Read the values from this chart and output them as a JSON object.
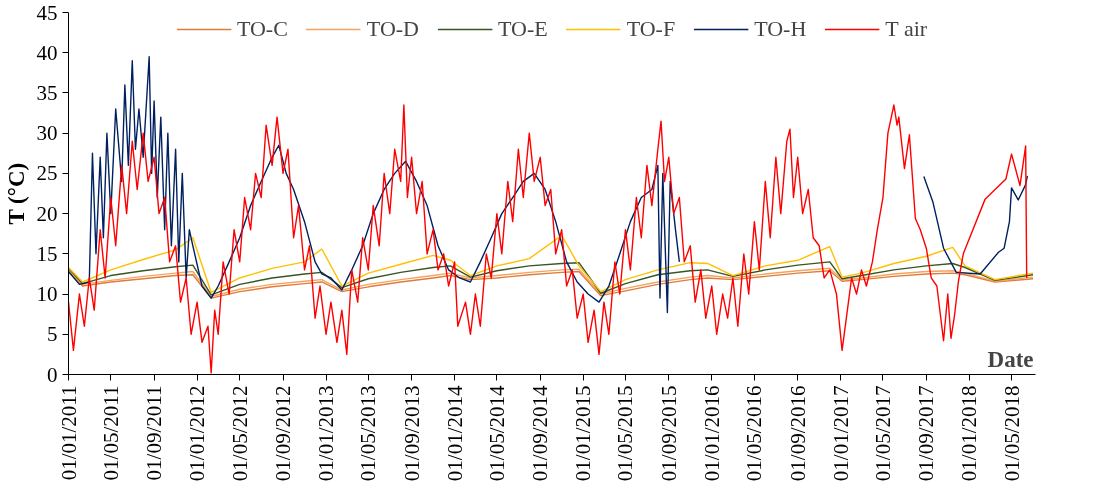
{
  "chart_data": {
    "type": "line",
    "xlabel": "Date",
    "ylabel": "T (°C)",
    "ylim": [
      0,
      45
    ],
    "yticks": [
      0,
      5,
      10,
      15,
      20,
      25,
      30,
      35,
      40,
      45
    ],
    "xlim": [
      "2011-01-01",
      "2018-07-08"
    ],
    "xticks": [
      {
        "value": "2011-01-01",
        "label": "01/01/2011"
      },
      {
        "value": "2011-05-01",
        "label": "01/05/2011"
      },
      {
        "value": "2011-09-01",
        "label": "01/09/2011"
      },
      {
        "value": "2012-01-01",
        "label": "01/01/2012"
      },
      {
        "value": "2012-05-01",
        "label": "01/05/2012"
      },
      {
        "value": "2012-09-01",
        "label": "01/09/2012"
      },
      {
        "value": "2013-01-01",
        "label": "01/01/2013"
      },
      {
        "value": "2013-05-01",
        "label": "01/05/2013"
      },
      {
        "value": "2013-09-01",
        "label": "01/09/2013"
      },
      {
        "value": "2014-01-01",
        "label": "01/01/2014"
      },
      {
        "value": "2014-05-01",
        "label": "01/05/2014"
      },
      {
        "value": "2014-09-01",
        "label": "01/09/2014"
      },
      {
        "value": "2015-01-01",
        "label": "01/01/2015"
      },
      {
        "value": "2015-05-01",
        "label": "01/05/2015"
      },
      {
        "value": "2015-09-01",
        "label": "01/09/2015"
      },
      {
        "value": "2016-01-01",
        "label": "01/01/2016"
      },
      {
        "value": "2016-05-01",
        "label": "01/05/2016"
      },
      {
        "value": "2016-09-01",
        "label": "01/09/2016"
      },
      {
        "value": "2017-01-01",
        "label": "01/01/2017"
      },
      {
        "value": "2017-05-01",
        "label": "01/05/2017"
      },
      {
        "value": "2017-09-01",
        "label": "01/09/2017"
      },
      {
        "value": "2018-01-01",
        "label": "01/01/2018"
      },
      {
        "value": "2018-05-01",
        "label": "01/05/2018"
      }
    ],
    "grid": false,
    "legend": "top",
    "marker": "none",
    "line_style": "solid",
    "x": [
      "2011-01-01",
      "2011-02-10",
      "2011-05-01",
      "2011-08-01",
      "2011-11-01",
      "2011-12-20",
      "2012-02-10",
      "2012-05-01",
      "2012-08-01",
      "2012-11-01",
      "2012-12-20",
      "2013-02-15",
      "2013-05-01",
      "2013-08-01",
      "2013-11-01",
      "2013-12-20",
      "2014-02-15",
      "2014-05-01",
      "2014-08-01",
      "2014-11-01",
      "2014-12-20",
      "2015-02-20",
      "2015-05-01",
      "2015-08-01",
      "2015-11-01",
      "2015-12-20",
      "2016-03-01",
      "2016-06-01",
      "2016-09-01",
      "2016-12-01",
      "2017-01-05",
      "2017-03-01",
      "2017-06-01",
      "2017-09-01",
      "2017-11-15",
      "2017-12-20",
      "2018-03-15",
      "2018-07-01"
    ],
    "series": [
      {
        "name": "TO-C",
        "color": "#e07b39",
        "values": [
          12.8,
          11.0,
          11.5,
          11.9,
          12.3,
          12.4,
          9.5,
          10.3,
          10.9,
          11.3,
          11.5,
          10.3,
          10.9,
          11.5,
          12.0,
          12.3,
          11.8,
          12.0,
          12.4,
          12.7,
          12.8,
          9.8,
          10.4,
          11.2,
          11.8,
          12.0,
          11.8,
          12.2,
          12.6,
          12.9,
          11.6,
          11.8,
          12.2,
          12.5,
          12.6,
          12.4,
          11.5,
          11.9
        ]
      },
      {
        "name": "TO-D",
        "color": "#f4a460",
        "values": [
          13.0,
          11.2,
          11.7,
          12.2,
          12.6,
          12.8,
          9.7,
          10.6,
          11.2,
          11.6,
          11.8,
          10.5,
          11.2,
          11.8,
          12.3,
          12.6,
          12.0,
          12.3,
          12.7,
          13.0,
          13.1,
          10.0,
          10.7,
          11.5,
          12.1,
          12.3,
          12.0,
          12.5,
          12.9,
          13.2,
          11.8,
          12.0,
          12.5,
          12.8,
          12.9,
          12.6,
          11.6,
          12.1
        ]
      },
      {
        "name": "TO-E",
        "color": "#375623",
        "values": [
          13.2,
          11.3,
          12.3,
          12.9,
          13.4,
          13.6,
          9.9,
          11.2,
          12.0,
          12.5,
          12.7,
          10.8,
          11.9,
          12.7,
          13.3,
          13.5,
          12.1,
          12.9,
          13.5,
          13.8,
          13.9,
          10.1,
          11.3,
          12.4,
          12.9,
          13.0,
          12.2,
          13.0,
          13.6,
          14.0,
          11.9,
          12.3,
          13.0,
          13.5,
          13.8,
          13.3,
          11.7,
          12.4
        ]
      },
      {
        "name": "TO-F",
        "color": "#ffc000",
        "values": [
          13.3,
          11.5,
          13.0,
          14.3,
          15.5,
          17.0,
          10.2,
          12.0,
          13.2,
          14.0,
          15.6,
          11.0,
          12.6,
          13.7,
          14.8,
          14.2,
          12.3,
          13.5,
          14.4,
          17.3,
          13.5,
          10.3,
          11.8,
          13.0,
          13.9,
          13.8,
          12.3,
          13.5,
          14.2,
          15.9,
          12.1,
          12.6,
          13.8,
          14.7,
          15.8,
          13.5,
          11.8,
          12.6
        ]
      },
      {
        "name": "TO-H",
        "color": "#002060",
        "x": [
          "2011-01-01",
          "2011-02-01",
          "2011-03-01",
          "2011-03-10",
          "2011-03-20",
          "2011-04-01",
          "2011-04-10",
          "2011-04-20",
          "2011-05-01",
          "2011-05-15",
          "2011-06-01",
          "2011-06-10",
          "2011-06-20",
          "2011-07-01",
          "2011-07-10",
          "2011-07-20",
          "2011-08-01",
          "2011-08-18",
          "2011-08-25",
          "2011-09-01",
          "2011-09-10",
          "2011-09-20",
          "2011-10-01",
          "2011-10-10",
          "2011-10-20",
          "2011-11-01",
          "2011-11-10",
          "2011-11-20",
          "2011-12-01",
          "2011-12-10",
          "2011-12-20",
          "2012-01-15",
          "2012-02-10",
          "2012-03-01",
          "2012-04-01",
          "2012-05-01",
          "2012-06-01",
          "2012-07-01",
          "2012-08-01",
          "2012-08-20",
          "2012-09-10",
          "2012-10-01",
          "2012-11-01",
          "2012-12-01",
          "2012-12-20",
          "2013-01-15",
          "2013-02-15",
          "2013-03-15",
          "2013-04-15",
          "2013-05-15",
          "2013-06-15",
          "2013-07-15",
          "2013-08-15",
          "2013-09-15",
          "2013-10-15",
          "2013-11-15",
          "2013-12-15",
          "2014-01-15",
          "2014-02-15",
          "2014-03-15",
          "2014-04-15",
          "2014-05-15",
          "2014-06-15",
          "2014-07-15",
          "2014-08-15",
          "2014-09-15",
          "2014-10-15",
          "2014-11-15",
          "2014-12-15",
          "2015-01-15",
          "2015-02-15",
          "2015-03-15",
          "2015-04-15",
          "2015-05-15",
          "2015-06-15",
          "2015-07-15",
          "2015-08-01",
          "2015-08-07",
          "2015-08-15",
          "2015-08-28",
          "2015-09-05",
          "2015-09-20",
          "2015-10-01",
          "2016-06-01",
          "2017-08-25",
          "2017-09-20",
          "2017-10-20",
          "2017-11-25",
          "2018-02-01",
          "2018-03-25",
          "2018-04-10",
          "2018-04-25",
          "2018-05-01",
          "2018-05-20",
          "2018-06-10",
          "2018-06-15"
        ],
        "values": [
          12.8,
          11.2,
          11.5,
          27.5,
          15,
          27,
          17,
          30,
          20,
          33,
          24,
          36,
          26,
          39,
          28,
          33,
          27,
          39.5,
          25,
          34,
          22,
          32,
          18,
          30,
          16,
          28,
          14,
          25,
          12,
          18,
          16,
          11,
          9.5,
          11,
          14,
          17,
          21,
          24,
          27,
          28.5,
          25,
          23,
          19,
          14,
          12.5,
          12,
          10.5,
          13,
          16,
          20,
          23,
          25,
          26.5,
          24,
          21,
          16,
          13,
          12,
          11.5,
          14,
          17,
          20,
          22,
          24,
          25,
          23,
          19,
          14,
          11.5,
          10,
          9,
          11,
          15,
          19,
          22,
          23,
          26,
          9.5,
          25,
          7.7,
          24,
          18,
          14,
          null,
          24.6,
          21.4,
          15.7,
          12.7,
          12.5,
          15.2,
          15.7,
          19,
          23.2,
          21.7,
          23.6,
          24.7
        ]
      },
      {
        "name": "T air",
        "color": "#ff0000",
        "x": [
          "2011-01-01",
          "2011-01-15",
          "2011-02-01",
          "2011-02-15",
          "2011-03-01",
          "2011-03-15",
          "2011-04-01",
          "2011-04-15",
          "2011-05-01",
          "2011-05-15",
          "2011-06-01",
          "2011-06-15",
          "2011-07-01",
          "2011-07-15",
          "2011-08-01",
          "2011-08-15",
          "2011-09-01",
          "2011-09-15",
          "2011-10-01",
          "2011-10-15",
          "2011-11-01",
          "2011-11-15",
          "2011-12-01",
          "2011-12-15",
          "2012-01-01",
          "2012-01-15",
          "2012-02-01",
          "2012-02-10",
          "2012-02-20",
          "2012-03-01",
          "2012-03-15",
          "2012-04-01",
          "2012-04-15",
          "2012-05-01",
          "2012-05-15",
          "2012-06-01",
          "2012-06-15",
          "2012-07-01",
          "2012-07-15",
          "2012-08-01",
          "2012-08-15",
          "2012-09-01",
          "2012-09-15",
          "2012-10-01",
          "2012-10-15",
          "2012-11-01",
          "2012-11-15",
          "2012-12-01",
          "2012-12-15",
          "2013-01-01",
          "2013-01-15",
          "2013-02-01",
          "2013-02-15",
          "2013-03-01",
          "2013-03-15",
          "2013-04-01",
          "2013-04-15",
          "2013-05-01",
          "2013-05-15",
          "2013-06-01",
          "2013-06-15",
          "2013-07-01",
          "2013-07-15",
          "2013-08-01",
          "2013-08-10",
          "2013-08-20",
          "2013-09-01",
          "2013-09-15",
          "2013-10-01",
          "2013-10-15",
          "2013-11-01",
          "2013-11-15",
          "2013-12-01",
          "2013-12-15",
          "2014-01-01",
          "2014-01-10",
          "2014-02-01",
          "2014-02-15",
          "2014-03-01",
          "2014-03-15",
          "2014-04-01",
          "2014-04-15",
          "2014-05-01",
          "2014-05-15",
          "2014-06-01",
          "2014-06-15",
          "2014-07-01",
          "2014-07-15",
          "2014-08-01",
          "2014-08-15",
          "2014-09-01",
          "2014-09-15",
          "2014-10-01",
          "2014-10-15",
          "2014-11-01",
          "2014-11-15",
          "2014-12-01",
          "2014-12-15",
          "2015-01-01",
          "2015-01-15",
          "2015-02-01",
          "2015-02-15",
          "2015-03-01",
          "2015-03-15",
          "2015-04-01",
          "2015-04-15",
          "2015-05-01",
          "2015-05-15",
          "2015-06-01",
          "2015-06-15",
          "2015-07-01",
          "2015-07-15",
          "2015-08-01",
          "2015-08-10",
          "2015-08-20",
          "2015-09-01",
          "2015-09-15",
          "2015-10-01",
          "2015-10-15",
          "2015-11-01",
          "2015-11-15",
          "2015-12-01",
          "2015-12-15",
          "2016-01-01",
          "2016-01-15",
          "2016-02-01",
          "2016-02-15",
          "2016-03-01",
          "2016-03-15",
          "2016-04-01",
          "2016-04-15",
          "2016-05-01",
          "2016-05-15",
          "2016-06-01",
          "2016-06-15",
          "2016-07-01",
          "2016-07-15",
          "2016-08-01",
          "2016-08-10",
          "2016-08-20",
          "2016-09-01",
          "2016-09-15",
          "2016-10-01",
          "2016-10-15",
          "2016-11-01",
          "2016-11-15",
          "2016-12-01",
          "2016-12-20",
          "2017-01-05",
          "2017-01-20",
          "2017-02-01",
          "2017-02-15",
          "2017-03-01",
          "2017-03-15",
          "2017-04-01",
          "2017-04-15",
          "2017-05-01",
          "2017-05-15",
          "2017-06-01",
          "2017-06-10",
          "2017-06-15",
          "2017-07-01",
          "2017-07-15",
          "2017-08-01",
          "2017-08-15",
          "2017-09-01",
          "2017-09-15",
          "2017-10-01",
          "2017-10-20",
          "2017-11-01",
          "2017-11-10",
          "2017-11-20",
          "2017-12-01",
          "2017-12-15",
          "2018-02-15",
          "2018-04-15",
          "2018-05-01",
          "2018-05-25",
          "2018-06-10",
          "2018-06-13"
        ],
        "values": [
          9,
          3,
          10,
          6,
          12,
          8,
          18,
          12,
          22,
          16,
          26,
          20,
          29,
          23,
          30,
          24,
          27,
          20,
          22,
          14,
          16,
          9,
          12,
          5,
          9,
          4,
          6,
          0.2,
          8,
          5,
          14,
          10,
          18,
          14,
          22,
          18,
          25,
          22,
          31,
          26,
          32,
          25,
          28,
          17,
          21,
          13,
          16,
          7,
          11,
          5,
          9,
          4,
          8,
          2.5,
          13,
          9,
          17,
          13,
          21,
          16,
          25,
          20,
          28,
          24,
          33.5,
          22,
          27,
          20,
          24,
          15,
          18,
          13,
          15,
          11,
          14,
          6,
          9,
          5,
          10,
          6,
          15,
          12,
          20,
          15,
          24,
          19,
          28,
          22,
          30,
          24,
          27,
          21,
          23,
          15,
          18,
          11,
          13,
          7,
          10,
          4,
          8,
          2.5,
          9,
          5,
          14,
          10,
          18,
          13,
          22,
          17,
          26,
          21,
          28,
          31.5,
          24,
          27,
          20,
          22,
          14,
          16,
          9,
          13,
          7,
          11,
          5,
          10,
          7,
          12,
          6,
          15,
          10,
          19,
          13,
          24,
          17,
          27,
          20,
          29,
          30.5,
          22,
          27,
          20,
          23,
          17,
          16,
          12,
          13,
          10,
          3,
          8,
          12,
          10,
          13,
          11,
          14,
          18,
          22,
          30,
          33.5,
          31,
          32,
          25.6,
          29.8,
          19.4,
          18,
          15.7,
          12,
          11,
          4.2,
          10,
          4.5,
          7.3,
          11.5,
          15,
          21.8,
          24.3,
          27.4,
          23.5,
          28.4,
          12
        ]
      }
    ]
  }
}
